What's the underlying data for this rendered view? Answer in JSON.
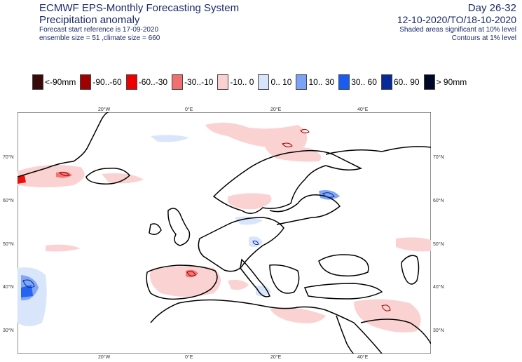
{
  "header": {
    "title": "ECMWF EPS-Monthly Forecasting System",
    "subtitle": "Precipitation anomaly",
    "line3": "Forecast start reference is 17-09-2020",
    "line4": "ensemble size = 51  ,climate size = 660",
    "day": "Day 26-32",
    "period": "12-10-2020/TO/18-10-2020",
    "sig1": "Shaded areas significant at 10% level",
    "sig2": "Contours at 1% level"
  },
  "legend": [
    {
      "label": "<-90mm",
      "color": "#3a0a0a"
    },
    {
      "label": "-90..-60",
      "color": "#a00000"
    },
    {
      "label": "-60..-30",
      "color": "#ee0000"
    },
    {
      "label": "-30..-10",
      "color": "#f07070"
    },
    {
      "label": "-10..  0",
      "color": "#fbd0d0"
    },
    {
      "label": "0..  10",
      "color": "#d8e4fb"
    },
    {
      "label": "10..  30",
      "color": "#7aa2f5"
    },
    {
      "label": "30..  60",
      "color": "#1a5cf0"
    },
    {
      "label": "60..  90",
      "color": "#062a9a"
    },
    {
      "label": ">  90mm",
      "color": "#00082a"
    }
  ],
  "axes": {
    "lon_top": [
      "20°W",
      "0°E",
      "20°E",
      "40°E"
    ],
    "lon_bottom": [
      "20°W",
      "0°E",
      "20°E",
      "40°E"
    ],
    "lat_left": [
      "70°N",
      "60°N",
      "50°N",
      "40°N",
      "30°N"
    ],
    "lat_right": [
      "70°N",
      "60°N",
      "50°N",
      "40°N",
      "30°N"
    ]
  }
}
